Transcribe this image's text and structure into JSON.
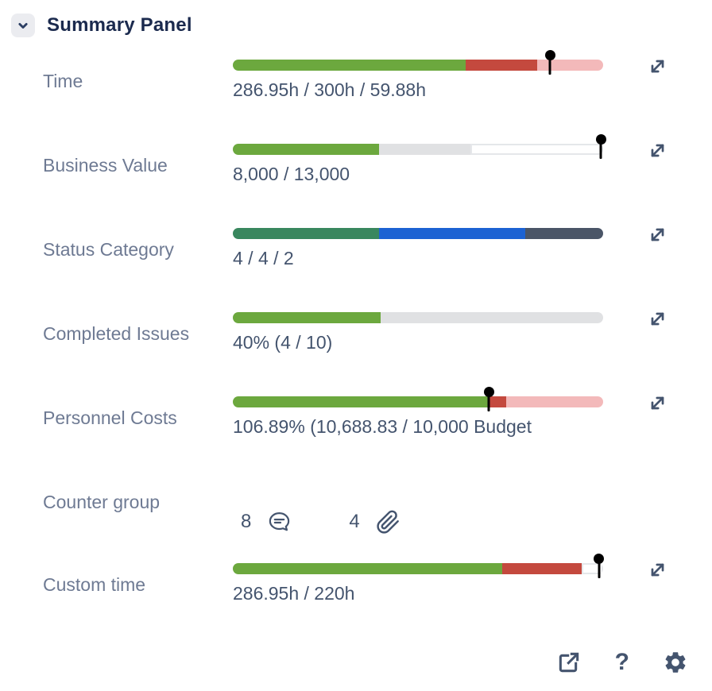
{
  "header": {
    "title": "Summary Panel"
  },
  "colors": {
    "green": "#6CA83E",
    "red": "#C4493E",
    "pink": "#F3B9BA",
    "status_green": "#39875E",
    "blue": "#1C62D3",
    "dark_slate": "#4A5567",
    "light_gray": "#E0E1E3",
    "icon": "#44546E",
    "label_text": "#6E7A93",
    "value_text": "#44546E",
    "title_text": "#1B2A4E",
    "marker": "#000000"
  },
  "rows": [
    {
      "type": "bar",
      "label": "Time",
      "value": "286.95h / 300h / 59.88h",
      "segments": [
        {
          "color": "#6CA83E",
          "pct": 62.8
        },
        {
          "color": "#C4493E",
          "pct": 19.3
        },
        {
          "color": "#F3B9BA",
          "pct": 17.9
        }
      ],
      "marker_pct": 85.7
    },
    {
      "type": "bar",
      "label": "Business Value",
      "value": "8,000 / 13,000",
      "segments": [
        {
          "color": "#6CA83E",
          "pct": 39.4
        },
        {
          "color": "#E0E1E3",
          "pct": 24.8
        },
        {
          "color": "#FFFFFF",
          "pct": 35.8,
          "border": true
        }
      ],
      "marker_pct": 99.4
    },
    {
      "type": "bar",
      "label": "Status Category",
      "value": "4 / 4 / 2",
      "segments": [
        {
          "color": "#39875E",
          "pct": 39.5
        },
        {
          "color": "#1C62D3",
          "pct": 39.5
        },
        {
          "color": "#4A5567",
          "pct": 21.0
        }
      ],
      "marker_pct": null
    },
    {
      "type": "bar",
      "label": "Completed Issues",
      "value": "40% (4 / 10)",
      "segments": [
        {
          "color": "#6CA83E",
          "pct": 40.0
        },
        {
          "color": "#E0E1E3",
          "pct": 60.0
        }
      ],
      "marker_pct": null
    },
    {
      "type": "bar",
      "label": "Personnel Costs",
      "value": "106.89% (10,688.83 / 10,000 Budget",
      "segments": [
        {
          "color": "#6CA83E",
          "pct": 69.1
        },
        {
          "color": "#C4493E",
          "pct": 4.7
        },
        {
          "color": "#F3B9BA",
          "pct": 26.2
        }
      ],
      "marker_pct": 69.1
    },
    {
      "type": "counters",
      "label": "Counter group",
      "counters": [
        {
          "value": "8",
          "icon": "comment-icon"
        },
        {
          "value": "4",
          "icon": "paperclip-icon"
        }
      ]
    },
    {
      "type": "bar",
      "label": "Custom time",
      "value": "286.95h / 220h",
      "segments": [
        {
          "color": "#6CA83E",
          "pct": 72.8
        },
        {
          "color": "#C4493E",
          "pct": 21.5
        },
        {
          "color": "#FFFFFF",
          "pct": 5.7,
          "border": true
        }
      ],
      "marker_pct": 98.9
    }
  ],
  "footer": {
    "help_label": "?"
  }
}
